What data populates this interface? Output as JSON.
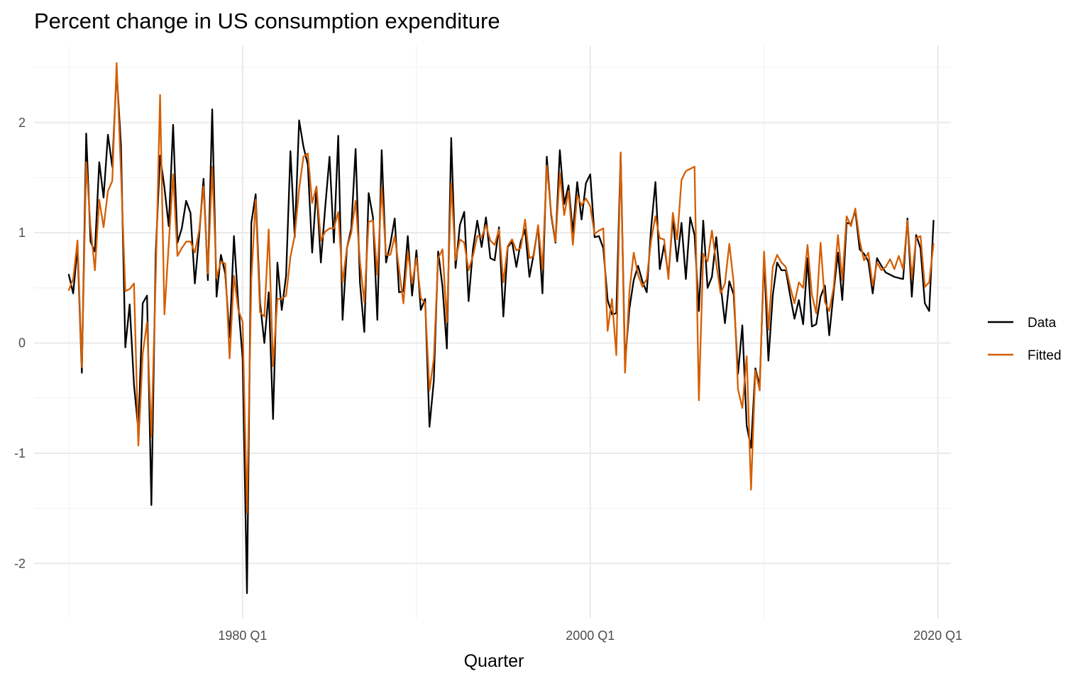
{
  "chart_data": {
    "type": "line",
    "title": "Percent change in US consumption expenditure",
    "xlabel": "Quarter",
    "ylabel": "",
    "x_start": "1970 Q1",
    "x_ticks": [
      "1980 Q1",
      "2000 Q1",
      "2020 Q1"
    ],
    "y_ticks": [
      "-2",
      "-1",
      "0",
      "1",
      "2"
    ],
    "xlim": [
      "1968 Q1",
      "2020 Q4"
    ],
    "ylim": [
      -2.5,
      2.7
    ],
    "grid": true,
    "legend_position": "right",
    "colors": {
      "Data": "#000000",
      "Fitted": "#D55E00"
    },
    "series": [
      {
        "name": "Data",
        "values": [
          0.62,
          0.45,
          0.87,
          -0.27,
          1.9,
          0.92,
          0.83,
          1.64,
          1.32,
          1.89,
          1.6,
          2.47,
          1.79,
          -0.04,
          0.35,
          -0.38,
          -0.79,
          0.36,
          0.43,
          -1.47,
          0.82,
          1.7,
          1.41,
          1.06,
          1.98,
          0.91,
          1.04,
          1.29,
          1.18,
          0.54,
          0.98,
          1.49,
          0.57,
          2.12,
          0.42,
          0.8,
          0.63,
          0.05,
          0.97,
          0.35,
          -0.14,
          -2.27,
          1.09,
          1.35,
          0.37,
          0.0,
          0.46,
          -0.69,
          0.73,
          0.3,
          0.61,
          1.74,
          0.96,
          2.02,
          1.78,
          1.62,
          0.82,
          1.41,
          0.73,
          1.23,
          1.69,
          0.91,
          1.88,
          0.21,
          0.86,
          1.04,
          1.76,
          0.55,
          0.1,
          1.36,
          1.14,
          0.21,
          1.75,
          0.73,
          0.9,
          1.13,
          0.46,
          0.47,
          0.97,
          0.43,
          0.84,
          0.3,
          0.4,
          -0.76,
          -0.34,
          0.83,
          0.51,
          -0.05,
          1.86,
          0.68,
          1.07,
          1.19,
          0.38,
          0.85,
          1.11,
          0.87,
          1.14,
          0.77,
          0.75,
          1.05,
          0.24,
          0.87,
          0.92,
          0.69,
          0.92,
          1.03,
          0.6,
          0.81,
          1.06,
          0.45,
          1.69,
          1.16,
          0.91,
          1.75,
          1.26,
          1.43,
          1.0,
          1.46,
          1.12,
          1.45,
          1.53,
          0.96,
          0.97,
          0.86,
          0.39,
          0.26,
          0.27,
          1.72,
          -0.19,
          0.31,
          0.57,
          0.7,
          0.56,
          0.46,
          1.04,
          1.46,
          0.67,
          0.89,
          0.61,
          1.13,
          0.74,
          1.09,
          0.58,
          1.14,
          0.98,
          0.29,
          1.11,
          0.5,
          0.6,
          0.96,
          0.53,
          0.18,
          0.56,
          0.44,
          -0.28,
          0.16,
          -0.75,
          -0.95,
          -0.23,
          -0.39,
          0.79,
          -0.16,
          0.43,
          0.73,
          0.66,
          0.66,
          0.43,
          0.22,
          0.39,
          0.17,
          0.77,
          0.15,
          0.17,
          0.42,
          0.52,
          0.07,
          0.46,
          0.82,
          0.39,
          1.09,
          1.08,
          1.2,
          0.85,
          0.81,
          0.74,
          0.45,
          0.77,
          0.7,
          0.64,
          0.62,
          0.6,
          0.59,
          0.58,
          1.13,
          0.42,
          0.98,
          0.86,
          0.36,
          0.29,
          1.11
        ]
      },
      {
        "name": "Fitted",
        "values": [
          0.48,
          0.58,
          0.93,
          -0.22,
          1.64,
          1.05,
          0.66,
          1.3,
          1.05,
          1.38,
          1.47,
          2.54,
          1.55,
          0.47,
          0.49,
          0.54,
          -0.93,
          -0.1,
          0.19,
          -0.85,
          0.6,
          2.25,
          0.26,
          0.9,
          1.53,
          0.79,
          0.86,
          0.92,
          0.92,
          0.82,
          1.02,
          1.42,
          0.63,
          1.6,
          0.59,
          0.74,
          0.72,
          -0.14,
          0.61,
          0.3,
          0.19,
          -1.54,
          0.58,
          1.3,
          0.28,
          0.24,
          1.03,
          -0.21,
          0.4,
          0.4,
          0.43,
          0.78,
          0.98,
          1.4,
          1.69,
          1.72,
          1.27,
          1.42,
          0.93,
          1.01,
          1.04,
          1.04,
          1.19,
          0.55,
          0.86,
          1.0,
          1.29,
          0.74,
          0.37,
          1.1,
          1.11,
          0.62,
          1.41,
          0.8,
          0.8,
          0.97,
          0.67,
          0.36,
          0.83,
          0.54,
          0.77,
          0.41,
          0.36,
          -0.43,
          -0.14,
          0.77,
          0.85,
          0.19,
          1.45,
          0.75,
          0.94,
          0.91,
          0.66,
          0.79,
          0.97,
          0.96,
          1.07,
          0.93,
          0.89,
          1.03,
          0.55,
          0.88,
          0.94,
          0.84,
          0.86,
          1.12,
          0.77,
          0.79,
          1.07,
          0.67,
          1.61,
          1.18,
          0.92,
          1.54,
          1.16,
          1.38,
          0.89,
          1.34,
          1.25,
          1.31,
          1.24,
          0.99,
          1.02,
          1.04,
          0.11,
          0.4,
          -0.11,
          1.73,
          -0.27,
          0.46,
          0.82,
          0.62,
          0.51,
          0.58,
          0.93,
          1.15,
          0.95,
          0.94,
          0.58,
          1.18,
          0.94,
          1.48,
          1.56,
          1.58,
          1.6,
          -0.52,
          0.81,
          0.74,
          1.02,
          0.72,
          0.45,
          0.54,
          0.9,
          0.55,
          -0.42,
          -0.59,
          -0.12,
          -1.33,
          -0.25,
          -0.43,
          0.83,
          0.12,
          0.69,
          0.8,
          0.73,
          0.69,
          0.51,
          0.36,
          0.55,
          0.5,
          0.89,
          0.44,
          0.27,
          0.91,
          0.37,
          0.29,
          0.5,
          0.98,
          0.57,
          1.15,
          1.06,
          1.22,
          0.93,
          0.75,
          0.82,
          0.52,
          0.73,
          0.66,
          0.69,
          0.76,
          0.67,
          0.79,
          0.67,
          1.11,
          0.59,
          0.95,
          0.97,
          0.51,
          0.55,
          0.9
        ]
      }
    ]
  }
}
